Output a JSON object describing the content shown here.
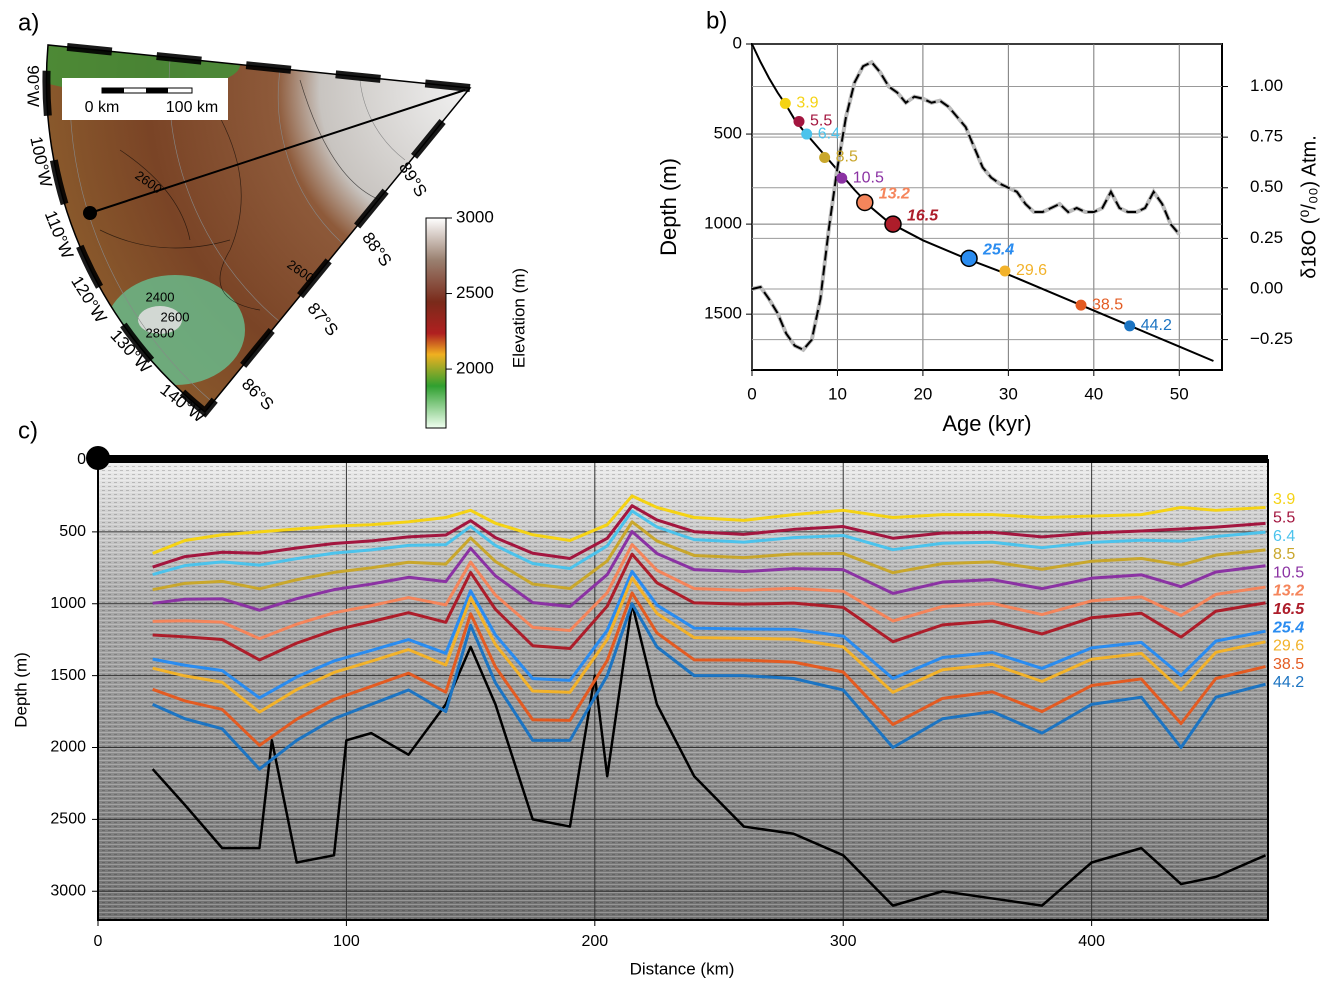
{
  "chart_data": [
    {
      "type": "map",
      "panel": "a)",
      "scale_bar": [
        "0 km",
        "100 km"
      ],
      "longitude_labels": [
        "90°W",
        "100°W",
        "110°W",
        "120°W",
        "130°W",
        "140°W"
      ],
      "latitude_labels": [
        "89°S",
        "88°S",
        "87°S",
        "86°S"
      ],
      "contour_labels": [
        "2600",
        "2600",
        "2400",
        "2600",
        "2800"
      ],
      "colorbar": {
        "label": "Elevation (m)",
        "lim": [
          1610,
          3000
        ],
        "ticks": [
          2000,
          2500,
          3000
        ]
      }
    },
    {
      "type": "line",
      "panel": "b)",
      "xlabel": "Age (kyr)",
      "ylabel": "Depth (m)",
      "y2label": "δ18O (⁰/₀₀) Atm.",
      "xlim": [
        0,
        55
      ],
      "xticks": [
        0,
        10,
        20,
        30,
        40,
        50
      ],
      "ylim": [
        0,
        1810
      ],
      "y_inverted": true,
      "yticks": [
        0,
        500,
        1000,
        1500
      ],
      "y2lim": [
        -0.4,
        1.21
      ],
      "y2ticks": [
        {
          "value": 1.0,
          "label": "1.00"
        },
        {
          "value": 0.75,
          "label": "0.75"
        },
        {
          "value": 0.5,
          "label": "0.50"
        },
        {
          "value": 0.25,
          "label": "0.25"
        },
        {
          "value": 0.0,
          "label": "0.00"
        },
        {
          "value": -0.25,
          "label": "−0.25"
        }
      ],
      "grid": true,
      "series": [
        {
          "color": "#000000",
          "x": [
            0,
            1,
            2,
            3,
            4,
            5,
            6,
            8,
            10,
            12,
            14,
            16,
            18,
            20,
            25,
            30,
            35,
            40,
            45,
            50,
            54
          ],
          "values": [
            0,
            100,
            190,
            270,
            340,
            420,
            480,
            590,
            700,
            810,
            910,
            990,
            1040,
            1090,
            1190,
            1280,
            1380,
            1480,
            1580,
            1680,
            1760
          ]
        },
        {
          "color": "#000000",
          "dashed": true,
          "axis": "y2",
          "x": [
            0,
            1,
            2,
            3,
            4,
            5,
            6,
            7,
            8,
            9,
            10,
            11,
            12,
            13,
            14,
            15,
            16,
            17,
            18,
            19,
            20,
            21,
            22,
            23,
            24,
            25,
            26,
            27,
            28,
            29,
            30,
            31,
            32,
            33,
            34,
            35,
            36,
            37,
            38,
            39,
            40,
            41,
            42,
            43,
            44,
            45,
            46,
            47,
            48,
            49,
            50
          ],
          "values": [
            0.0,
            0.01,
            -0.05,
            -0.12,
            -0.22,
            -0.28,
            -0.3,
            -0.25,
            -0.05,
            0.3,
            0.6,
            0.85,
            1.02,
            1.1,
            1.12,
            1.07,
            1.0,
            0.97,
            0.92,
            0.95,
            0.94,
            0.92,
            0.93,
            0.9,
            0.85,
            0.8,
            0.7,
            0.6,
            0.55,
            0.52,
            0.5,
            0.48,
            0.42,
            0.38,
            0.38,
            0.4,
            0.42,
            0.38,
            0.4,
            0.38,
            0.38,
            0.4,
            0.48,
            0.4,
            0.38,
            0.38,
            0.4,
            0.48,
            0.42,
            0.32,
            0.27
          ]
        }
      ],
      "markers": {
        "x": [
          3.9,
          5.5,
          6.4,
          8.5,
          10.5,
          13.2,
          16.5,
          25.4,
          29.6,
          38.5,
          44.2
        ],
        "values": [
          330,
          430,
          500,
          630,
          745,
          880,
          1000,
          1190,
          1260,
          1450,
          1565
        ],
        "colors": [
          "#f5d314",
          "#a3163f",
          "#4cc3ec",
          "#c9a72c",
          "#8b32a3",
          "#f5855b",
          "#ad1d2a",
          "#2a8cf0",
          "#f2b22a",
          "#e35b22",
          "#1c74c2"
        ],
        "bold": [
          false,
          false,
          false,
          false,
          false,
          true,
          true,
          true,
          false,
          false,
          false
        ]
      }
    },
    {
      "type": "line",
      "panel": "c)",
      "xlabel": "Distance (km)",
      "ylabel": "Depth (m)",
      "xlim": [
        0,
        471
      ],
      "xticks": [
        0,
        100,
        200,
        300,
        400
      ],
      "ylim": [
        0,
        3200
      ],
      "y_inverted": true,
      "yticks": [
        0,
        500,
        1000,
        1500,
        2000,
        2500,
        3000
      ],
      "grid": true,
      "x": [
        22,
        35,
        50,
        65,
        80,
        95,
        110,
        125,
        140,
        150,
        160,
        175,
        190,
        205,
        215,
        225,
        240,
        260,
        280,
        300,
        320,
        340,
        360,
        380,
        400,
        420,
        436,
        450,
        470
      ],
      "series": [
        {
          "name": "3.9",
          "color": "#f5d314",
          "bold": false,
          "values": [
            650,
            560,
            520,
            500,
            480,
            460,
            450,
            430,
            400,
            350,
            440,
            520,
            560,
            450,
            250,
            330,
            400,
            420,
            380,
            350,
            400,
            380,
            380,
            400,
            390,
            380,
            330,
            350,
            330
          ]
        },
        {
          "name": "5.5",
          "color": "#a3163f",
          "bold": false,
          "values": [
            745,
            672,
            642,
            649,
            612,
            581,
            563,
            535,
            522,
            422,
            540,
            649,
            685,
            545,
            318,
            417,
            499,
            517,
            483,
            463,
            544,
            508,
            503,
            535,
            508,
            494,
            480,
            467,
            441
          ]
        },
        {
          "name": "6.4",
          "color": "#4cc3ec",
          "bold": false,
          "values": [
            797,
            734,
            709,
            731,
            686,
            648,
            625,
            594,
            589,
            462,
            595,
            720,
            755,
            597,
            355,
            466,
            554,
            571,
            540,
            525,
            624,
            579,
            572,
            610,
            573,
            558,
            564,
            532,
            502
          ]
        },
        {
          "name": "8.5",
          "color": "#c9a72c",
          "bold": false,
          "values": [
            902,
            858,
            844,
            896,
            833,
            782,
            750,
            711,
            724,
            542,
            706,
            863,
            894,
            702,
            430,
            563,
            664,
            679,
            654,
            650,
            784,
            721,
            709,
            760,
            704,
            685,
            731,
            662,
            625
          ]
        },
        {
          "name": "10.5",
          "color": "#8b32a3",
          "bold": false,
          "values": [
            997,
            969,
            966,
            1045,
            965,
            902,
            863,
            816,
            846,
            614,
            806,
            992,
            1019,
            797,
            498,
            650,
            763,
            776,
            756,
            763,
            928,
            849,
            832,
            895,
            822,
            799,
            881,
            779,
            736
          ]
        },
        {
          "name": "13.2",
          "color": "#f5855b",
          "bold": true,
          "values": [
            1123,
            1118,
            1128,
            1243,
            1142,
            1063,
            1013,
            957,
            1008,
            710,
            940,
            1164,
            1186,
            923,
            588,
            767,
            895,
            906,
            893,
            913,
            1120,
            1019,
            997,
            1075,
            980,
            952,
            1082,
            935,
            884
          ]
        },
        {
          "name": "16.5",
          "color": "#ad1d2a",
          "bold": true,
          "values": [
            1217,
            1230,
            1249,
            1391,
            1274,
            1184,
            1125,
            1062,
            1129,
            782,
            1039,
            1292,
            1311,
            1017,
            655,
            854,
            994,
            1003,
            996,
            1025,
            1264,
            1147,
            1120,
            1210,
            1097,
            1066,
            1232,
            1052,
            994
          ]
        },
        {
          "name": "25.4",
          "color": "#2a8cf0",
          "bold": true,
          "values": [
            1385,
            1428,
            1465,
            1655,
            1509,
            1398,
            1325,
            1249,
            1345,
            910,
            1217,
            1521,
            1533,
            1185,
            775,
            1009,
            1170,
            1176,
            1178,
            1225,
            1520,
            1374,
            1339,
            1450,
            1307,
            1269,
            1499,
            1260,
            1191
          ]
        },
        {
          "name": "29.6",
          "color": "#f2b22a",
          "bold": false,
          "values": [
            1448,
            1502,
            1546,
            1754,
            1597,
            1478,
            1400,
            1319,
            1426,
            958,
            1284,
            1607,
            1616,
            1248,
            820,
            1067,
            1236,
            1241,
            1246,
            1300,
            1616,
            1459,
            1421,
            1540,
            1386,
            1345,
            1599,
            1338,
            1265
          ]
        },
        {
          "name": "38.5",
          "color": "#e35b22",
          "bold": false,
          "values": [
            1595,
            1676,
            1735,
            1985,
            1803,
            1666,
            1575,
            1483,
            1615,
            1070,
            1439,
            1807,
            1811,
            1395,
            925,
            1203,
            1390,
            1392,
            1406,
            1475,
            1840,
            1658,
            1613,
            1750,
            1569,
            1523,
            1833,
            1520,
            1437
          ]
        },
        {
          "name": "44.2",
          "color": "#1c74c2",
          "bold": false,
          "values": [
            1700,
            1800,
            1870,
            2150,
            1950,
            1800,
            1700,
            1600,
            1750,
            1150,
            1550,
            1950,
            1950,
            1500,
            1000,
            1300,
            1500,
            1500,
            1520,
            1600,
            2000,
            1800,
            1750,
            1900,
            1700,
            1650,
            2000,
            1650,
            1560
          ]
        }
      ],
      "bed": {
        "color": "#000000",
        "x": [
          22,
          35,
          50,
          65,
          70,
          80,
          95,
          100,
          110,
          125,
          140,
          150,
          160,
          175,
          190,
          200,
          205,
          215,
          225,
          240,
          260,
          280,
          300,
          320,
          340,
          360,
          380,
          400,
          420,
          436,
          450,
          470
        ],
        "values": [
          2150,
          2400,
          2700,
          2700,
          1950,
          2800,
          2750,
          1950,
          1900,
          2050,
          1700,
          1300,
          1700,
          2500,
          2550,
          1500,
          2200,
          1000,
          1700,
          2200,
          2550,
          2600,
          2750,
          3100,
          3000,
          3050,
          3100,
          2800,
          2700,
          2950,
          2900,
          2750
        ]
      }
    }
  ]
}
